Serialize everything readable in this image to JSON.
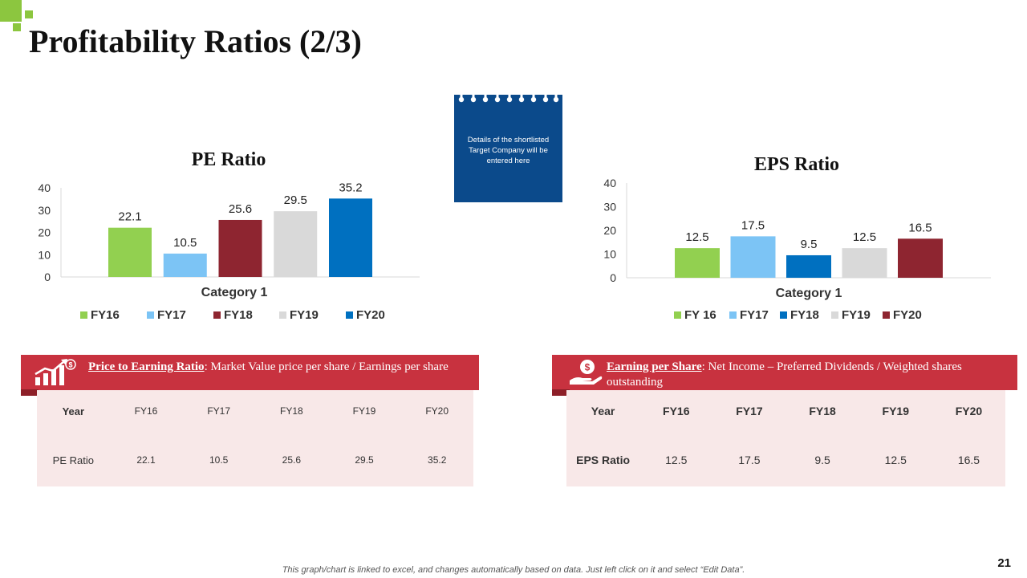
{
  "slide": {
    "title": "Profitability Ratios (2/3)",
    "page_number": "21",
    "footer_note": "This graph/chart is linked to excel, and changes automatically based on data. Just left click on it and select “Edit Data”."
  },
  "note_card": {
    "text": "Details of the shortlisted Target Company will be entered here",
    "color": "#0b4a8b"
  },
  "chart_data": [
    {
      "type": "bar",
      "title": "PE Ratio",
      "xlabel": "Category 1",
      "ylabel": "",
      "categories": [
        "Category 1"
      ],
      "ylim": [
        0,
        40
      ],
      "yticks": [
        0,
        10,
        20,
        30,
        40
      ],
      "legend_position": "bottom",
      "series": [
        {
          "name": "FY16",
          "values": [
            22.1
          ],
          "color": "#92d050"
        },
        {
          "name": "FY17",
          "values": [
            10.5
          ],
          "color": "#7cc4f5"
        },
        {
          "name": "FY18",
          "values": [
            25.6
          ],
          "color": "#8e2530"
        },
        {
          "name": "FY19",
          "values": [
            29.5
          ],
          "color": "#d9d9d9"
        },
        {
          "name": "FY20",
          "values": [
            35.2
          ],
          "color": "#0070c0"
        }
      ]
    },
    {
      "type": "bar",
      "title": "EPS Ratio",
      "xlabel": "Category 1",
      "ylabel": "",
      "categories": [
        "Category 1"
      ],
      "ylim": [
        0,
        40
      ],
      "yticks": [
        0,
        10,
        20,
        30,
        40
      ],
      "legend_position": "bottom",
      "series": [
        {
          "name": "FY 16",
          "values": [
            12.5
          ],
          "color": "#92d050"
        },
        {
          "name": "FY17",
          "values": [
            17.5
          ],
          "color": "#7cc4f5"
        },
        {
          "name": "FY18",
          "values": [
            9.5
          ],
          "color": "#0070c0"
        },
        {
          "name": "FY19",
          "values": [
            12.5
          ],
          "color": "#d9d9d9"
        },
        {
          "name": "FY20",
          "values": [
            16.5
          ],
          "color": "#8e2530"
        }
      ]
    }
  ],
  "pe_section": {
    "banner_bold": "Price to Earning Ratio",
    "banner_text": ": Market Value price per share / Earnings per share",
    "table": {
      "headers": [
        "Year",
        "FY16",
        "FY17",
        "FY18",
        "FY19",
        "FY20"
      ],
      "row": [
        "PE Ratio",
        "22.1",
        "10.5",
        "25.6",
        "29.5",
        "35.2"
      ]
    }
  },
  "eps_section": {
    "banner_bold": "Earning per Share",
    "banner_text": ": Net Income – Preferred Dividends / Weighted shares outstanding",
    "table": {
      "headers": [
        "Year",
        "FY16",
        "FY17",
        "FY18",
        "FY19",
        "FY20"
      ],
      "row": [
        "EPS Ratio",
        "12.5",
        "17.5",
        "9.5",
        "12.5",
        "16.5"
      ]
    }
  },
  "colors": {
    "accent_green": "#8cc63f",
    "banner_red": "#c8323f",
    "table_bg": "#f8e8e8"
  }
}
